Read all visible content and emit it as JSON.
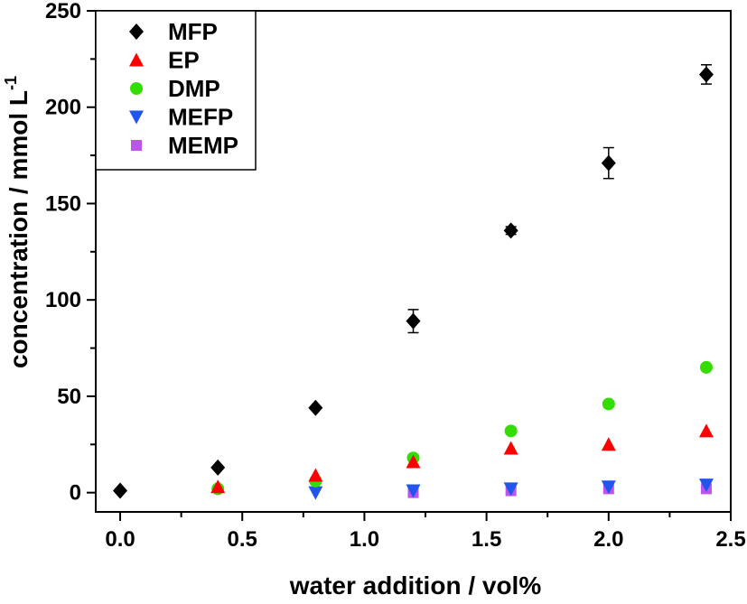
{
  "chart_data": {
    "type": "scatter",
    "xlabel": "water addition / vol%",
    "ylabel_main": "concentration / mmol L",
    "ylabel_sup": "-1",
    "xlim": [
      -0.1,
      2.5
    ],
    "ylim": [
      -10,
      250
    ],
    "xticks": [
      "0.0",
      "0.5",
      "1.0",
      "1.5",
      "2.0",
      "2.5"
    ],
    "yticks": [
      "0",
      "50",
      "100",
      "150",
      "200",
      "250"
    ],
    "legend_position": "top-left",
    "grid": false,
    "series": [
      {
        "name": "MFP",
        "marker": "diamond",
        "color": "#000000",
        "points": [
          {
            "x": 0.0,
            "y": 1
          },
          {
            "x": 0.4,
            "y": 13
          },
          {
            "x": 0.8,
            "y": 44
          },
          {
            "x": 1.2,
            "y": 89,
            "err": 6
          },
          {
            "x": 1.6,
            "y": 136,
            "err": 2
          },
          {
            "x": 2.0,
            "y": 171,
            "err": 8
          },
          {
            "x": 2.4,
            "y": 217,
            "err": 5
          }
        ]
      },
      {
        "name": "EP",
        "marker": "triangle-up",
        "color": "#ff0000",
        "points": [
          {
            "x": 0.4,
            "y": 3
          },
          {
            "x": 0.8,
            "y": 9
          },
          {
            "x": 1.2,
            "y": 16
          },
          {
            "x": 1.6,
            "y": 23
          },
          {
            "x": 2.0,
            "y": 25
          },
          {
            "x": 2.4,
            "y": 32
          }
        ]
      },
      {
        "name": "DMP",
        "marker": "circle",
        "color": "#33dd00",
        "points": [
          {
            "x": 0.4,
            "y": 2
          },
          {
            "x": 0.8,
            "y": 6
          },
          {
            "x": 1.2,
            "y": 18
          },
          {
            "x": 1.6,
            "y": 32
          },
          {
            "x": 2.0,
            "y": 46
          },
          {
            "x": 2.4,
            "y": 65
          }
        ]
      },
      {
        "name": "MEFP",
        "marker": "triangle-down",
        "color": "#2255ee",
        "points": [
          {
            "x": 0.8,
            "y": 0
          },
          {
            "x": 1.2,
            "y": 1
          },
          {
            "x": 1.6,
            "y": 2
          },
          {
            "x": 2.0,
            "y": 3
          },
          {
            "x": 2.4,
            "y": 4
          }
        ]
      },
      {
        "name": "MEMP",
        "marker": "square",
        "color": "#bb55ee",
        "points": [
          {
            "x": 1.2,
            "y": 0
          },
          {
            "x": 1.6,
            "y": 1
          },
          {
            "x": 2.0,
            "y": 2
          },
          {
            "x": 2.4,
            "y": 2
          }
        ]
      }
    ]
  }
}
